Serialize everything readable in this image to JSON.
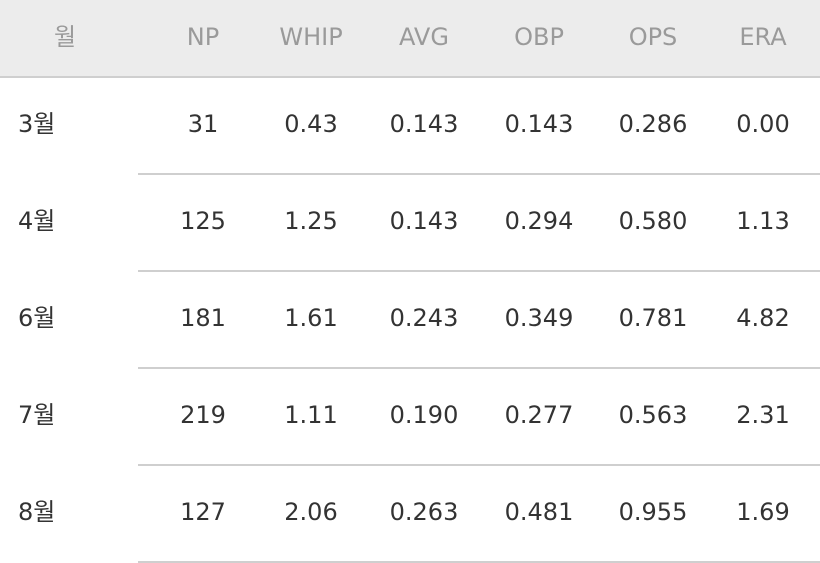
{
  "table": {
    "headers": [
      "월",
      "NP",
      "WHIP",
      "AVG",
      "OBP",
      "OPS",
      "ERA"
    ],
    "rows": [
      [
        "3월",
        "31",
        "0.43",
        "0.143",
        "0.143",
        "0.286",
        "0.00"
      ],
      [
        "4월",
        "125",
        "1.25",
        "0.143",
        "0.294",
        "0.580",
        "1.13"
      ],
      [
        "6월",
        "181",
        "1.61",
        "0.243",
        "0.349",
        "0.781",
        "4.82"
      ],
      [
        "7월",
        "219",
        "1.11",
        "0.190",
        "0.277",
        "0.563",
        "2.31"
      ],
      [
        "8월",
        "127",
        "2.06",
        "0.263",
        "0.481",
        "0.955",
        "1.69"
      ]
    ]
  }
}
